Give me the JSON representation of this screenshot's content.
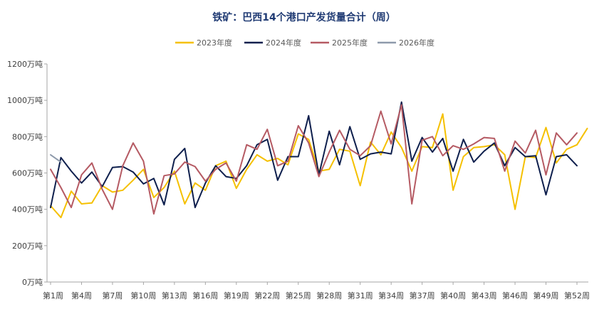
{
  "chart_data": {
    "type": "line",
    "title": "铁矿：巴西14个港口产发货量合计（周）",
    "xlabel": "",
    "ylabel": "",
    "ylim": [
      0,
      1200
    ],
    "yticks": [
      0,
      200,
      400,
      600,
      800,
      1000,
      1200
    ],
    "ytick_suffix": "万吨",
    "x_tick_labels": [
      "第1周",
      "第4周",
      "第7周",
      "第10周",
      "第13周",
      "第16周",
      "第19周",
      "第22周",
      "第25周",
      "第28周",
      "第31周",
      "第34周",
      "第37周",
      "第40周",
      "第43周",
      "第46周",
      "第49周",
      "第52周"
    ],
    "x_tick_weeks": [
      1,
      4,
      7,
      10,
      13,
      16,
      19,
      22,
      25,
      28,
      31,
      34,
      37,
      40,
      43,
      46,
      49,
      52
    ],
    "x_range": [
      1,
      52
    ],
    "grid": false,
    "legend_position": "top",
    "series": [
      {
        "name": "2023年度",
        "color": "#f5c000",
        "values": [
          420,
          355,
          500,
          430,
          435,
          530,
          495,
          505,
          560,
          620,
          465,
          520,
          610,
          430,
          545,
          505,
          640,
          665,
          515,
          620,
          700,
          665,
          680,
          645,
          815,
          785,
          610,
          620,
          730,
          720,
          530,
          770,
          700,
          825,
          740,
          610,
          745,
          740,
          925,
          505,
          690,
          740,
          745,
          755,
          700,
          400,
          690,
          685,
          850,
          655,
          730,
          755,
          845
        ]
      },
      {
        "name": "2024年度",
        "color": "#0e1f4d",
        "values": [
          410,
          685,
          610,
          545,
          605,
          525,
          630,
          635,
          605,
          540,
          570,
          425,
          675,
          735,
          410,
          545,
          640,
          580,
          570,
          640,
          755,
          785,
          560,
          690,
          690,
          915,
          590,
          830,
          645,
          855,
          675,
          705,
          715,
          705,
          990,
          665,
          795,
          715,
          790,
          610,
          785,
          660,
          720,
          765,
          640,
          740,
          690,
          695,
          480,
          690,
          700,
          640
        ]
      },
      {
        "name": "2025年度",
        "color": "#b55a63",
        "values": [
          620,
          520,
          410,
          590,
          655,
          510,
          400,
          640,
          765,
          665,
          375,
          585,
          595,
          660,
          635,
          555,
          620,
          655,
          555,
          755,
          730,
          840,
          640,
          665,
          860,
          765,
          580,
          715,
          835,
          730,
          695,
          750,
          940,
          760,
          975,
          430,
          780,
          800,
          695,
          750,
          730,
          760,
          795,
          790,
          610,
          775,
          710,
          835,
          590,
          820,
          755,
          820
        ]
      },
      {
        "name": "2026年度",
        "color": "#8e9aab",
        "values": [
          700,
          660
        ]
      }
    ]
  }
}
